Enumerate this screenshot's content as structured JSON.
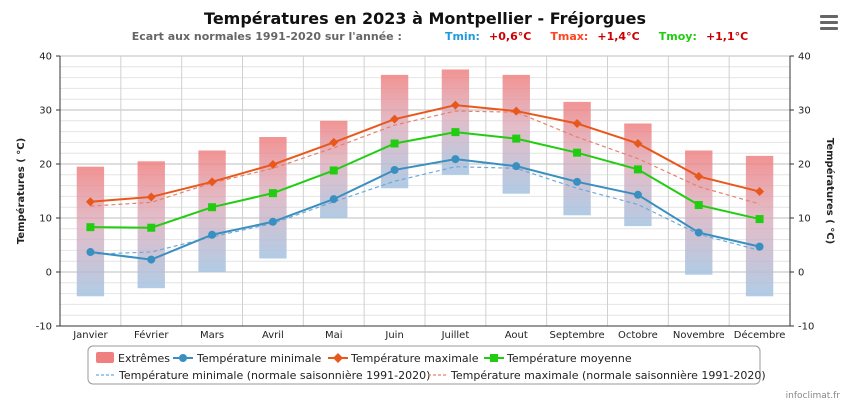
{
  "chart_data": {
    "type": "line",
    "title": "Températures en 2023 à Montpellier - Fréjorgues",
    "subtitle": {
      "label": "Ecart aux normales 1991-2020 sur l'année :",
      "tmin_label": "Tmin:",
      "tmin_value": "+0,6°C",
      "tmax_label": "Tmax:",
      "tmax_value": "+1,4°C",
      "tmoy_label": "Tmoy:",
      "tmoy_value": "+1,1°C"
    },
    "ylabel_left": "Températures ( °C)",
    "ylabel_right": "Températures ( °C)",
    "ylim": [
      -10,
      40
    ],
    "yticks": [
      -10,
      0,
      10,
      20,
      30,
      40
    ],
    "categories": [
      "Janvier",
      "Février",
      "Mars",
      "Avril",
      "Mai",
      "Juin",
      "Juillet",
      "Aout",
      "Septembre",
      "Octobre",
      "Novembre",
      "Décembre"
    ],
    "extremes": {
      "name": "Extrêmes",
      "low": [
        -4.5,
        -3.0,
        0.0,
        2.5,
        10.0,
        15.5,
        18.0,
        14.5,
        10.5,
        8.5,
        -0.5,
        -4.5
      ],
      "high": [
        19.5,
        20.5,
        22.5,
        25.0,
        28.0,
        36.5,
        37.5,
        36.5,
        31.5,
        27.5,
        22.5,
        21.5
      ]
    },
    "series": [
      {
        "name": "Température minimale",
        "values": [
          3.7,
          2.3,
          6.9,
          9.3,
          13.5,
          18.9,
          20.9,
          19.6,
          16.7,
          14.3,
          7.3,
          4.7
        ]
      },
      {
        "name": "Température maximale",
        "values": [
          13.0,
          13.9,
          16.7,
          19.9,
          24.0,
          28.3,
          30.9,
          29.8,
          27.5,
          23.8,
          17.7,
          14.9
        ]
      },
      {
        "name": "Température moyenne",
        "values": [
          8.3,
          8.2,
          12.0,
          14.6,
          18.8,
          23.8,
          25.9,
          24.7,
          22.1,
          19.0,
          12.4,
          9.8
        ]
      },
      {
        "name": "Température minimale (normale saisonnière 1991-2020)",
        "values": [
          3.3,
          3.7,
          6.5,
          9.0,
          13.0,
          16.8,
          19.5,
          19.2,
          15.5,
          12.5,
          7.0,
          4.0
        ]
      },
      {
        "name": "Température maximale (normale saisonnière 1991-2020)",
        "values": [
          12.2,
          12.9,
          16.5,
          19.2,
          23.0,
          27.2,
          29.8,
          29.6,
          25.0,
          21.0,
          15.8,
          12.6
        ]
      }
    ],
    "colors": {
      "extremes_high": "#f08080",
      "extremes_low": "#a8c6e2",
      "tmin": "#3a8fc1",
      "tmax": "#e8581c",
      "tmoy": "#22cc11",
      "tmin_normal": "#6aaadc",
      "tmax_normal": "#e8806a",
      "tmin_label": "#2299dd",
      "tmax_label": "#ff4422",
      "tmoy_label": "#22cc11",
      "value_text": "#cc0000"
    },
    "credit": "infoclimat.fr",
    "menu_icon": "hamburger-menu-icon"
  }
}
